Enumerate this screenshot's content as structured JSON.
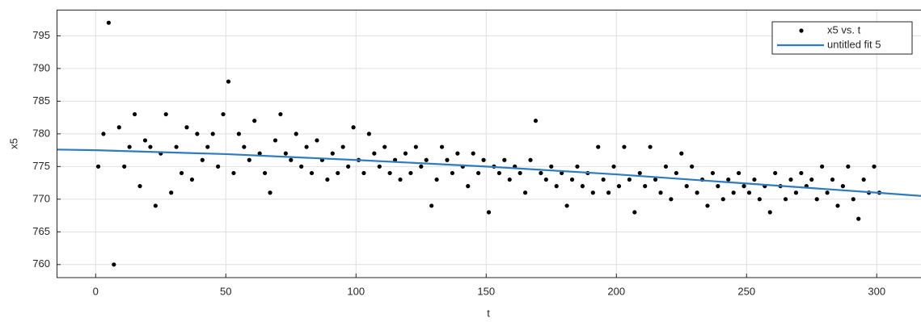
{
  "chart_data": {
    "type": "scatter",
    "xlabel": "t",
    "ylabel": "x5",
    "xlim": [
      -15,
      317
    ],
    "ylim": [
      758,
      799
    ],
    "xticks": [
      0,
      50,
      100,
      150,
      200,
      250,
      300
    ],
    "yticks": [
      760,
      765,
      770,
      775,
      780,
      785,
      790,
      795
    ],
    "grid": true,
    "legend": "northeast",
    "series": [
      {
        "name": "x5 vs. t",
        "type": "scatter",
        "color": "#000000",
        "x": [
          1,
          3,
          5,
          7,
          9,
          11,
          13,
          15,
          17,
          19,
          21,
          23,
          25,
          27,
          29,
          31,
          33,
          35,
          37,
          39,
          41,
          43,
          45,
          47,
          49,
          51,
          53,
          55,
          57,
          59,
          61,
          63,
          65,
          67,
          69,
          71,
          73,
          75,
          77,
          79,
          81,
          83,
          85,
          87,
          89,
          91,
          93,
          95,
          97,
          99,
          101,
          103,
          105,
          107,
          109,
          111,
          113,
          115,
          117,
          119,
          121,
          123,
          125,
          127,
          129,
          131,
          133,
          135,
          137,
          139,
          141,
          143,
          145,
          147,
          149,
          151,
          153,
          155,
          157,
          159,
          161,
          163,
          165,
          167,
          169,
          171,
          173,
          175,
          177,
          179,
          181,
          183,
          185,
          187,
          189,
          191,
          193,
          195,
          197,
          199,
          201,
          203,
          205,
          207,
          209,
          211,
          213,
          215,
          217,
          219,
          221,
          223,
          225,
          227,
          229,
          231,
          233,
          235,
          237,
          239,
          241,
          243,
          245,
          247,
          249,
          251,
          253,
          255,
          257,
          259,
          261,
          263,
          265,
          267,
          269,
          271,
          273,
          275,
          277,
          279,
          281,
          283,
          285,
          287,
          289,
          291,
          293,
          295,
          297,
          299,
          301
        ],
        "values": [
          775,
          780,
          797,
          760,
          781,
          775,
          778,
          783,
          772,
          779,
          778,
          769,
          777,
          783,
          771,
          778,
          774,
          781,
          773,
          780,
          776,
          778,
          780,
          775,
          783,
          788,
          774,
          780,
          778,
          776,
          782,
          777,
          774,
          771,
          779,
          783,
          777,
          776,
          780,
          775,
          778,
          774,
          779,
          776,
          773,
          777,
          774,
          778,
          775,
          781,
          776,
          774,
          780,
          777,
          775,
          778,
          774,
          776,
          773,
          777,
          774,
          778,
          775,
          776,
          769,
          773,
          778,
          776,
          774,
          777,
          775,
          772,
          777,
          774,
          776,
          768,
          775,
          774,
          776,
          773,
          775,
          774,
          771,
          776,
          782,
          774,
          773,
          775,
          772,
          774,
          769,
          773,
          775,
          772,
          774,
          771,
          778,
          773,
          771,
          775,
          772,
          778,
          773,
          768,
          774,
          772,
          778,
          773,
          771,
          775,
          770,
          774,
          777,
          772,
          775,
          771,
          773,
          769,
          774,
          772,
          770,
          773,
          771,
          774,
          772,
          771,
          773,
          770,
          772,
          768,
          774,
          772,
          770,
          773,
          771,
          774,
          772,
          773,
          770,
          775,
          771,
          773,
          769,
          772,
          775,
          770,
          767,
          773,
          771,
          775,
          771
        ]
      },
      {
        "name": "untitled fit 5",
        "type": "line",
        "color": "#2f7bbf",
        "x": [
          -15,
          0,
          50,
          100,
          150,
          200,
          250,
          300,
          317
        ],
        "values": [
          777.6,
          777.5,
          776.9,
          776.0,
          775.0,
          773.8,
          772.4,
          771.0,
          770.5
        ]
      }
    ]
  }
}
